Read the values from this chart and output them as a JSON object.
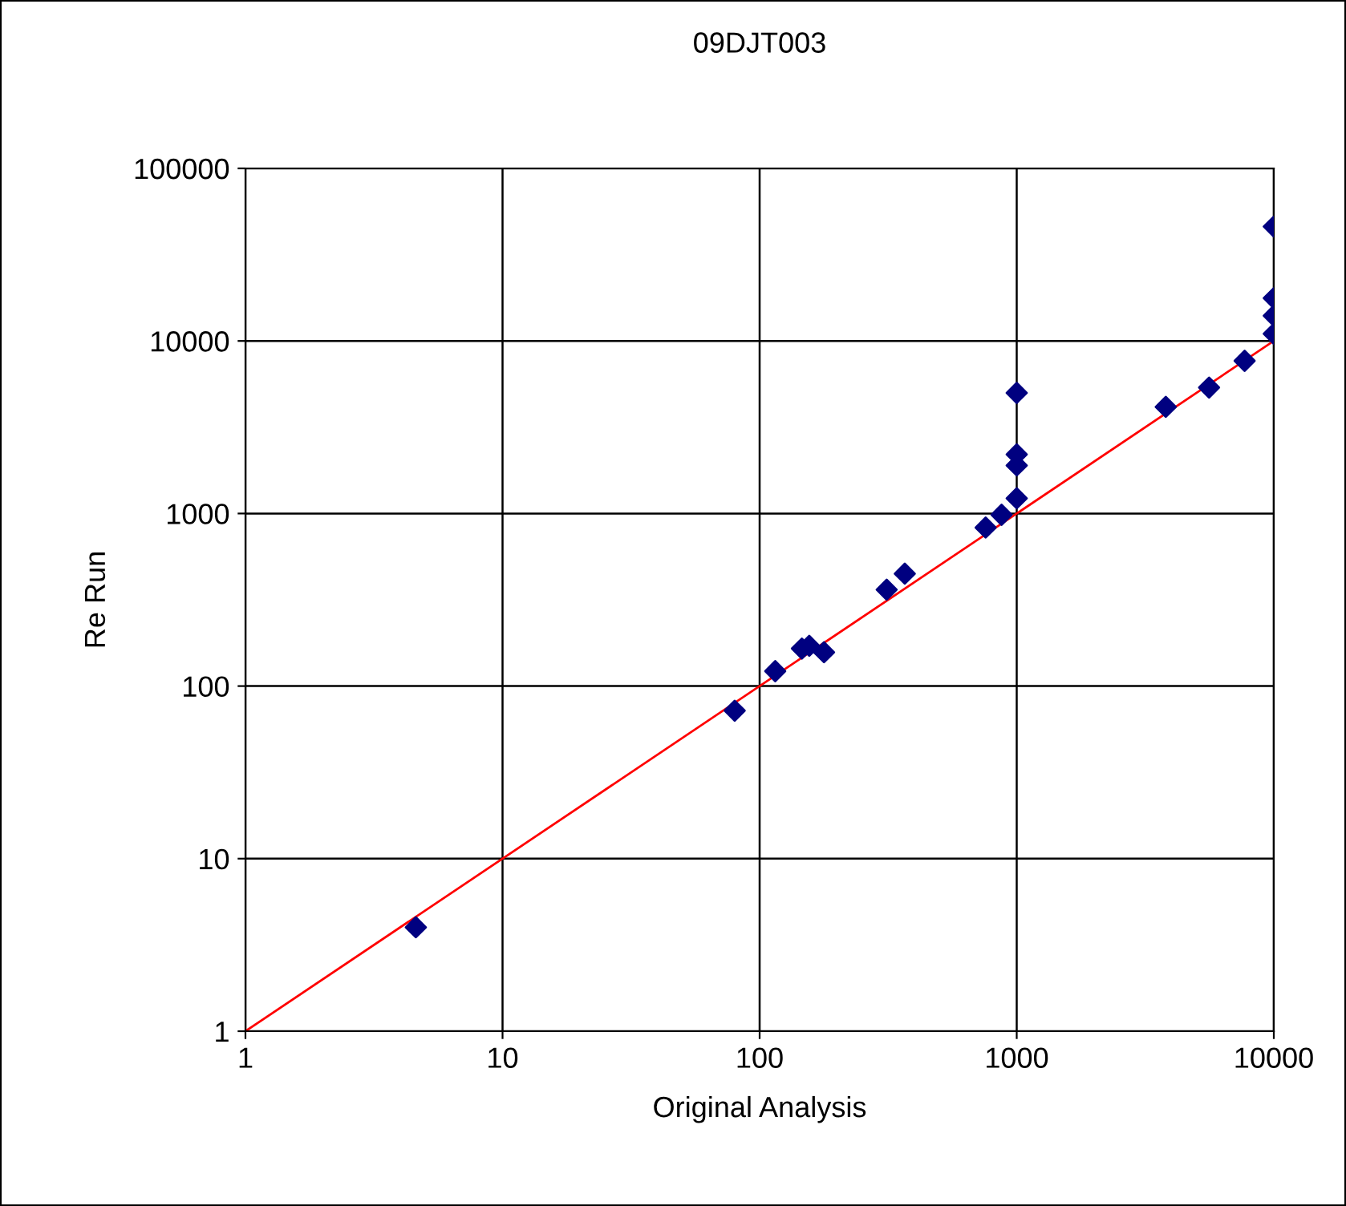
{
  "chart_data": {
    "type": "scatter",
    "title": "09DJT003",
    "xlabel": "Original Analysis",
    "ylabel": "Re Run",
    "log": "xy",
    "xlim": [
      1,
      10000
    ],
    "ylim": [
      1,
      100000
    ],
    "xticks": [
      1,
      10,
      100,
      1000,
      10000
    ],
    "yticks": [
      1,
      10,
      100,
      1000,
      10000,
      100000
    ],
    "grid": true,
    "legend": false,
    "series": [
      {
        "color": "#000080",
        "marker": "diamond",
        "x": [
          4.6,
          80,
          115,
          146,
          156,
          178,
          312,
          367,
          757,
          873,
          1000,
          1000,
          1000,
          1000,
          3800,
          5600,
          7700,
          10000,
          10000,
          10000,
          10000
        ],
        "values": [
          4,
          72,
          122,
          165,
          171,
          157,
          362,
          448,
          829,
          983,
          1225,
          1900,
          2200,
          5000,
          4150,
          5370,
          7670,
          11000,
          14000,
          17700,
          46000
        ]
      },
      {
        "type": "line",
        "color": "#ff0000",
        "marker": "none",
        "line_style": "solid",
        "x": [
          1,
          10000
        ],
        "values": [
          1,
          10000
        ]
      }
    ]
  }
}
